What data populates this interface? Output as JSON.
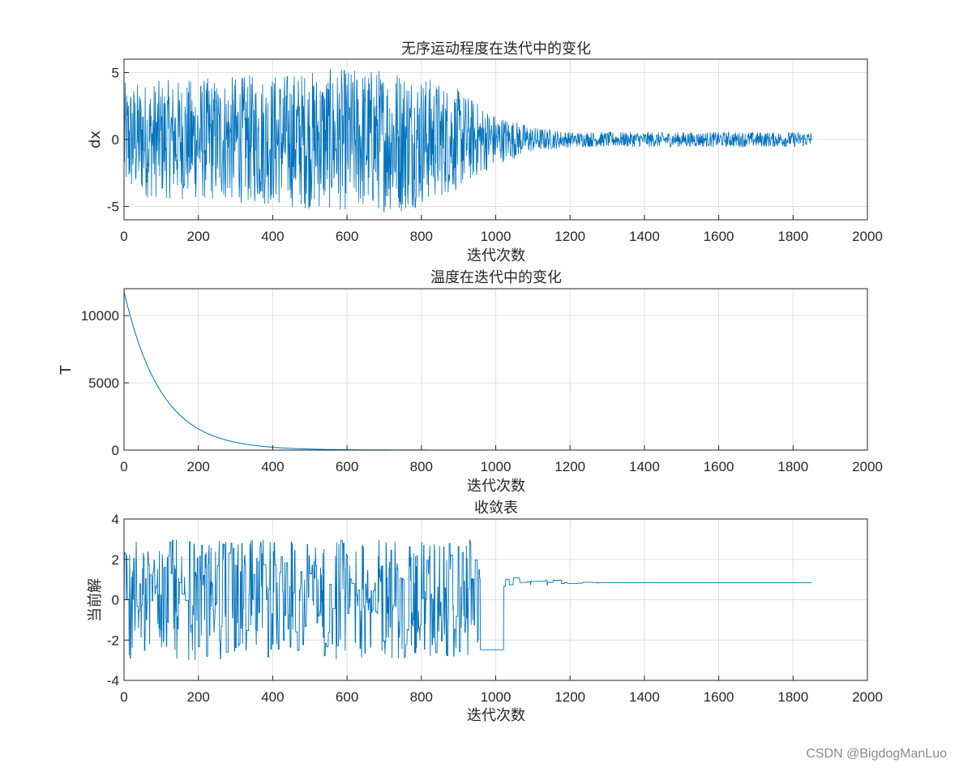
{
  "watermark": "CSDN @BigdogManLuo",
  "colors": {
    "line": "#0072BD",
    "grid": "#dfdfdf",
    "axis": "#262626"
  },
  "chart_data": [
    {
      "type": "line",
      "title": "无序运动程度在迭代中的变化",
      "xlabel": "迭代次数",
      "ylabel": "dx",
      "xlim": [
        0,
        2000
      ],
      "ylim": [
        -6,
        6
      ],
      "xticks": [
        0,
        200,
        400,
        600,
        800,
        1000,
        1200,
        1400,
        1600,
        1800,
        2000
      ],
      "yticks": [
        -5,
        0,
        5
      ],
      "grid": true,
      "series": [
        {
          "x_range": [
            0,
            1850
          ],
          "points": 1850,
          "amplitude_envelope": [
            [
              0,
              4.5
            ],
            [
              300,
              5.0
            ],
            [
              500,
              5.5
            ],
            [
              750,
              5.8
            ],
            [
              900,
              4.0
            ],
            [
              1000,
              2.0
            ],
            [
              1100,
              1.0
            ],
            [
              1200,
              0.6
            ],
            [
              1850,
              0.6
            ]
          ]
        }
      ]
    },
    {
      "type": "line",
      "title": "温度在迭代中的变化",
      "xlabel": "迭代次数",
      "ylabel": "T",
      "xlim": [
        0,
        2000
      ],
      "ylim": [
        0,
        12000
      ],
      "xticks": [
        0,
        200,
        400,
        600,
        800,
        1000,
        1200,
        1400,
        1600,
        1800,
        2000
      ],
      "yticks": [
        0,
        5000,
        10000
      ],
      "grid": true,
      "series": [
        {
          "x_range": [
            0,
            1850
          ],
          "initial_value": 11800,
          "decay_rate": 0.99
        }
      ]
    },
    {
      "type": "line",
      "title": "收敛表",
      "xlabel": "迭代次数",
      "ylabel": "当前解",
      "xlim": [
        0,
        2000
      ],
      "ylim": [
        -4,
        4
      ],
      "xticks": [
        0,
        200,
        400,
        600,
        800,
        1000,
        1200,
        1400,
        1600,
        1800,
        2000
      ],
      "yticks": [
        -4,
        -2,
        0,
        2,
        4
      ],
      "grid": true,
      "series": [
        {
          "x_range": [
            0,
            1850
          ],
          "random_range": [
            -3,
            3
          ],
          "random_until": 940,
          "final_value": 0.85
        }
      ]
    }
  ]
}
